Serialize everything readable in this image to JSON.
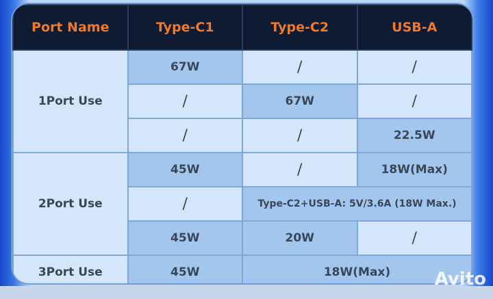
{
  "headers": [
    "Port Name",
    "Type-C1",
    "Type-C2",
    "USB-A"
  ],
  "groups": [
    {
      "label": "1Port Use",
      "rows": [
        [
          "67W",
          "/",
          "/"
        ],
        [
          "/",
          "67W",
          "/"
        ],
        [
          "/",
          "/",
          "22.5W"
        ]
      ]
    },
    {
      "label": "2Port Use",
      "rows": [
        [
          "45W",
          "/",
          "18W(Max)"
        ],
        [
          "/",
          "Type-C2+USB-A: 5V/3.6A (18W Max.)"
        ],
        [
          "45W",
          "20W",
          "/"
        ]
      ]
    },
    {
      "label": "3Port Use",
      "rows": [
        [
          "45W",
          "18W(Max)"
        ]
      ]
    }
  ],
  "watermark": "Avito",
  "colors": {
    "header_bg": "#0f1a33",
    "header_text": "#f07a2a",
    "cell_light": "#d3e6fc",
    "cell_highlight": "#a3c6ef"
  }
}
